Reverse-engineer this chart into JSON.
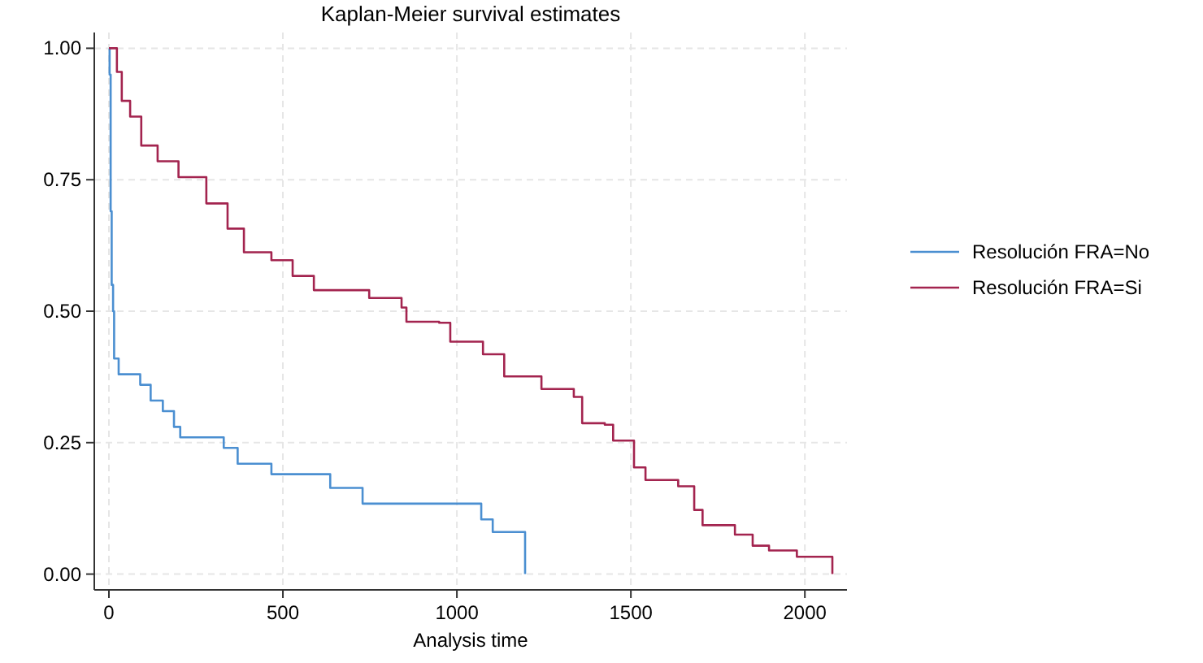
{
  "chart_data": {
    "type": "step",
    "title": "Kaplan-Meier survival estimates",
    "xlabel": "Analysis time",
    "xlim": [
      -42,
      2121
    ],
    "xticks": [
      0,
      500,
      1000,
      1500,
      2000
    ],
    "ylim": [
      -0.03,
      1.03
    ],
    "yticks": [
      {
        "value": 0,
        "label": "0.00"
      },
      {
        "value": 0.25,
        "label": "0.25"
      },
      {
        "value": 0.5,
        "label": "0.50"
      },
      {
        "value": 0.75,
        "label": "0.75"
      },
      {
        "value": 1,
        "label": "1.00"
      }
    ],
    "grid": true,
    "legend": "right",
    "line_style": "solid",
    "series": [
      {
        "name": "Resolución FRA=No",
        "color": "#4b8fd1",
        "x": [
          0,
          2,
          5,
          8,
          12,
          15,
          28,
          90,
          120,
          155,
          187,
          205,
          330,
          370,
          467,
          636,
          729,
          1070,
          1103,
          1196
        ],
        "values": [
          1,
          0.95,
          0.69,
          0.55,
          0.5,
          0.41,
          0.38,
          0.36,
          0.33,
          0.31,
          0.28,
          0.26,
          0.24,
          0.21,
          0.19,
          0.164,
          0.134,
          0.104,
          0.08,
          0
        ]
      },
      {
        "name": "Resolución FRA=Si",
        "color": "#a3244f",
        "x": [
          0,
          5,
          23,
          37,
          61,
          93,
          140,
          200,
          280,
          341,
          388,
          449,
          467,
          528,
          589,
          748,
          841,
          855,
          949,
          981,
          1075,
          1136,
          1243,
          1336,
          1360,
          1425,
          1449,
          1509,
          1542,
          1636,
          1682,
          1706,
          1799,
          1850,
          1897,
          1977,
          2079
        ],
        "values": [
          1,
          1,
          0.955,
          0.9,
          0.87,
          0.815,
          0.785,
          0.755,
          0.705,
          0.657,
          0.612,
          0.612,
          0.597,
          0.567,
          0.54,
          0.525,
          0.507,
          0.48,
          0.478,
          0.442,
          0.418,
          0.376,
          0.352,
          0.337,
          0.287,
          0.284,
          0.254,
          0.203,
          0.179,
          0.167,
          0.122,
          0.093,
          0.075,
          0.054,
          0.045,
          0.033,
          0
        ]
      }
    ]
  }
}
